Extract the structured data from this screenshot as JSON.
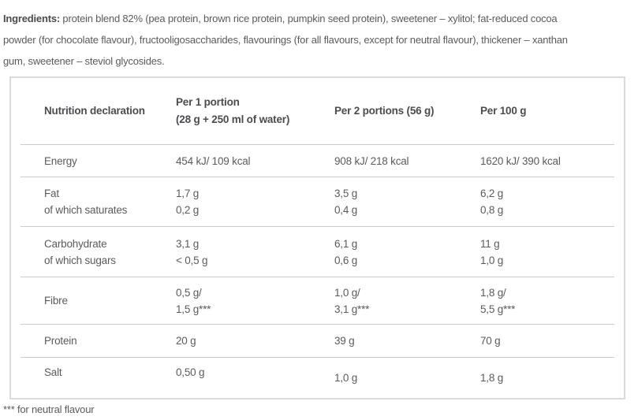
{
  "colors": {
    "body_text": "#5a5b5e",
    "heading_text": "#4b4c50",
    "table_border": "#d9dadb",
    "row_divider": "#cbcbcc"
  },
  "ingredients": {
    "bold_label": "Ingredients:",
    "lines": [
      " protein blend 82% (pea protein, brown rice protein, pumpkin seed protein), sweetener – xylitol; fat-reduced cocoa",
      "powder (for chocolate flavour), fructooligosaccharides, flavourings (for all flavours, except for neutral flavour), thickener – xanthan",
      "gum, sweetener – steviol glycosides."
    ]
  },
  "nutrition_table": {
    "columns": [
      {
        "lines": [
          "Nutrition declaration"
        ]
      },
      {
        "lines": [
          "Per 1 portion",
          "(28 g + 250 ml of water)"
        ]
      },
      {
        "lines": [
          "Per 2 portions (56 g)"
        ]
      },
      {
        "lines": [
          "Per 100 g"
        ]
      }
    ],
    "rows": [
      {
        "cells": [
          [
            "Energy"
          ],
          [
            "454 kJ/ 109 kcal"
          ],
          [
            "908 kJ/ 218 kcal"
          ],
          [
            "1620 kJ/ 390 kcal"
          ]
        ]
      },
      {
        "cells": [
          [
            "Fat",
            "of which saturates"
          ],
          [
            "1,7 g",
            "0,2 g"
          ],
          [
            "3,5 g",
            "0,4 g"
          ],
          [
            "6,2 g",
            "0,8 g"
          ]
        ]
      },
      {
        "cells": [
          [
            "Carbohydrate",
            "of which sugars"
          ],
          [
            "3,1 g",
            "< 0,5 g"
          ],
          [
            "6,1 g",
            "0,6 g"
          ],
          [
            "11 g",
            "1,0 g"
          ]
        ]
      },
      {
        "cells": [
          [
            "Fibre"
          ],
          [
            "0,5 g/",
            "1,5 g***"
          ],
          [
            "1,0 g/",
            "3,1 g***"
          ],
          [
            "1,8 g/",
            "5,5 g***"
          ]
        ]
      },
      {
        "cells": [
          [
            "Protein"
          ],
          [
            "20 g"
          ],
          [
            "39 g"
          ],
          [
            "70 g"
          ]
        ]
      },
      {
        "cells": [
          [
            "Salt"
          ],
          [
            "0,50 g"
          ],
          [
            "1,0 g"
          ],
          [
            "1,8 g"
          ]
        ]
      }
    ]
  },
  "footnote": "*** for neutral flavour"
}
